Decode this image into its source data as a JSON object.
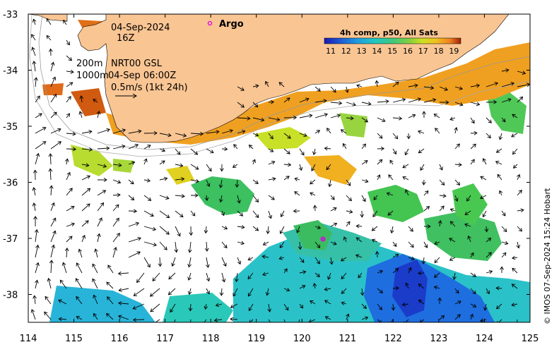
{
  "map": {
    "date": "04-Sep-2024",
    "time": "16Z",
    "argo_label": "Argo",
    "legend_title": "4h comp, p50, All Sats",
    "legend_ticks": [
      "11",
      "12",
      "13",
      "14",
      "15",
      "16",
      "17",
      "18",
      "19"
    ],
    "contour_label_1": "200m",
    "contour_label_2": "1000m",
    "current_source": "NRT00 GSL",
    "current_time": "04-Sep 06:00Z",
    "scale_label": "0.5m/s (1kt 24h)",
    "x_ticks": [
      "114",
      "115",
      "116",
      "117",
      "118",
      "119",
      "120",
      "121",
      "122",
      "123",
      "124",
      "125"
    ],
    "y_ticks": [
      "-33",
      "-34",
      "-35",
      "-36",
      "-37",
      "-38"
    ],
    "credit": "© IMOS 07-Sep-2024 15:24 Hobart"
  },
  "colors": {
    "land": "#f9c593",
    "argo": "#e000e0",
    "sst_scale": [
      "#1a1ab0",
      "#1e5ad6",
      "#1ea0e0",
      "#20c8c0",
      "#40c880",
      "#80d040",
      "#d0e020",
      "#f0c020",
      "#f08020",
      "#d04010",
      "#a02008"
    ]
  }
}
